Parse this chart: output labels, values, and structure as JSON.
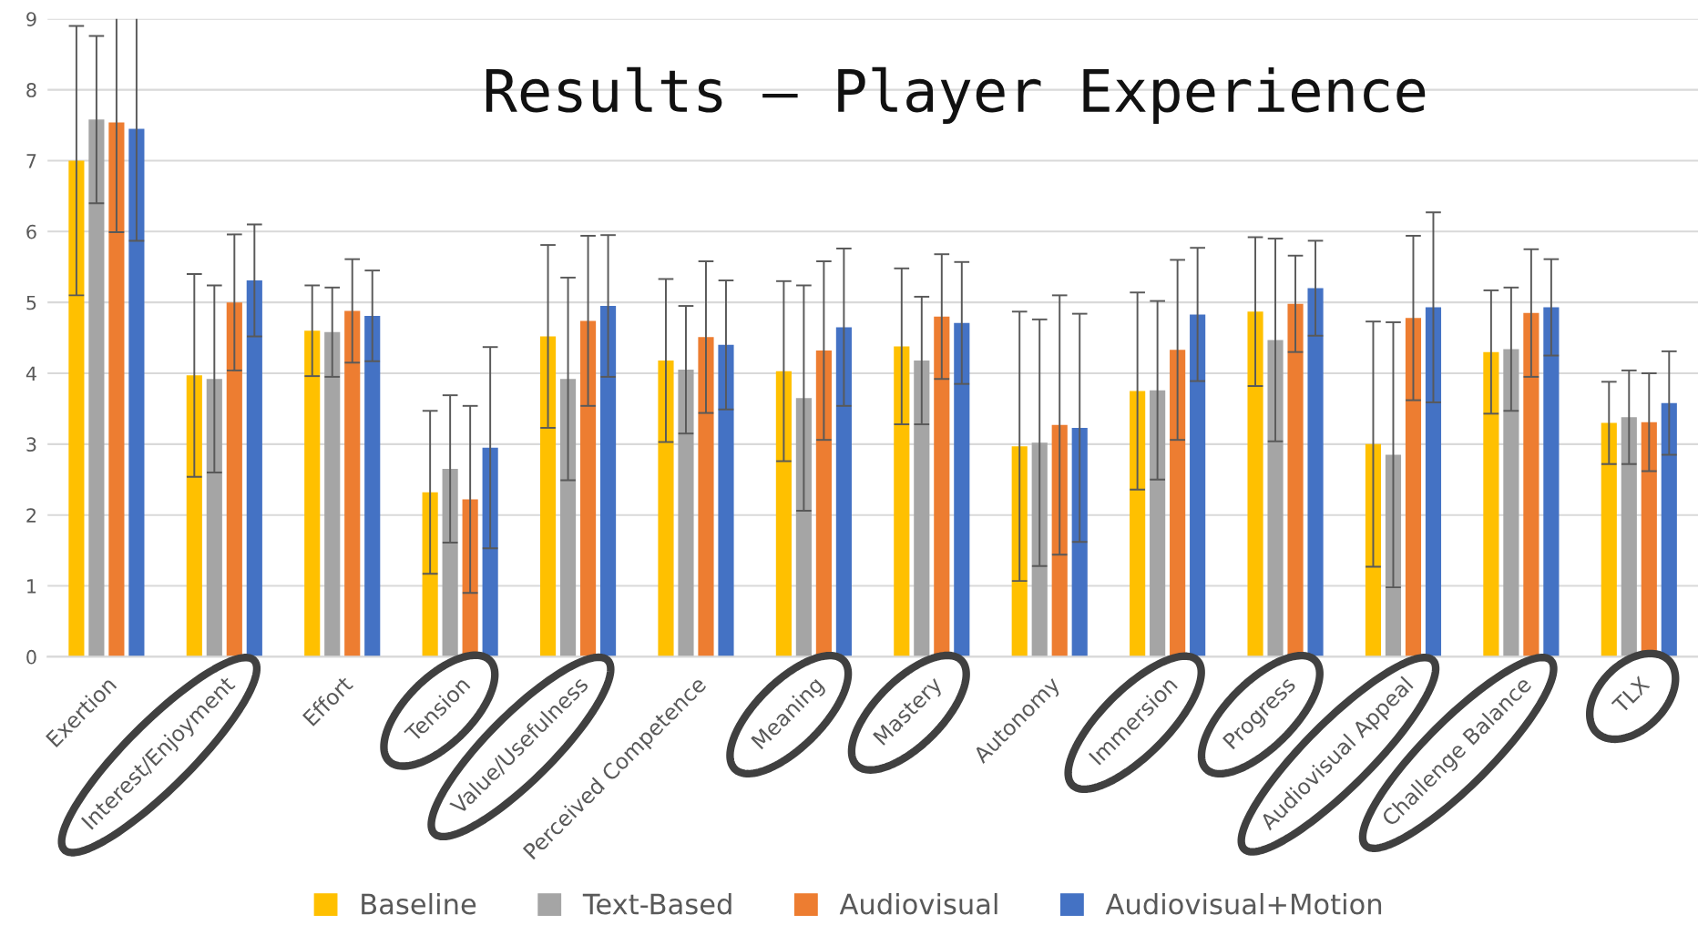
{
  "chart_data": {
    "type": "bar",
    "title": "Results – Player Experience",
    "categories": [
      "Exertion",
      "Interest/Enjoyment",
      "Effort",
      "Tension",
      "Value/Usefulness",
      "Perceived Competence",
      "Meaning",
      "Mastery",
      "Autonomy",
      "Immersion",
      "Progress",
      "Audiovisual Appeal",
      "Challenge Balance",
      "TLX"
    ],
    "series": [
      {
        "name": "Baseline",
        "color": "#ffc000",
        "values": [
          7.0,
          3.97,
          4.6,
          2.32,
          4.52,
          4.18,
          4.03,
          4.38,
          2.97,
          3.75,
          4.87,
          3.0,
          4.3,
          3.3
        ],
        "errors": [
          1.9,
          1.43,
          0.64,
          1.15,
          1.29,
          1.15,
          1.27,
          1.1,
          1.9,
          1.39,
          1.05,
          1.73,
          0.87,
          0.58
        ]
      },
      {
        "name": "Text-Based",
        "color": "#a5a5a5",
        "values": [
          7.58,
          3.92,
          4.58,
          2.65,
          3.92,
          4.05,
          3.65,
          4.18,
          3.02,
          3.76,
          4.47,
          2.85,
          4.34,
          3.38
        ],
        "errors": [
          1.18,
          1.32,
          0.63,
          1.04,
          1.43,
          0.9,
          1.59,
          0.9,
          1.74,
          1.26,
          1.43,
          1.87,
          0.87,
          0.66
        ]
      },
      {
        "name": "Audiovisual",
        "color": "#ed7d31",
        "values": [
          7.54,
          5.0,
          4.88,
          2.22,
          4.74,
          4.51,
          4.32,
          4.8,
          3.27,
          4.33,
          4.98,
          4.78,
          4.85,
          3.31
        ],
        "errors": [
          1.55,
          0.96,
          0.73,
          1.32,
          1.2,
          1.07,
          1.26,
          0.88,
          1.83,
          1.27,
          0.68,
          1.16,
          0.9,
          0.69
        ]
      },
      {
        "name": "Audiovisual+Motion",
        "color": "#4472c4",
        "values": [
          7.45,
          5.31,
          4.81,
          2.95,
          4.95,
          4.4,
          4.65,
          4.71,
          3.23,
          4.83,
          5.2,
          4.93,
          4.93,
          3.58
        ],
        "errors": [
          1.58,
          0.79,
          0.64,
          1.42,
          1.0,
          0.91,
          1.11,
          0.86,
          1.61,
          0.94,
          0.67,
          1.34,
          0.68,
          0.73
        ]
      }
    ],
    "ylim": [
      0,
      9
    ],
    "yticks": [
      0,
      1,
      2,
      3,
      4,
      5,
      6,
      7,
      8,
      9
    ],
    "grid": "y",
    "legend": "bottom"
  }
}
